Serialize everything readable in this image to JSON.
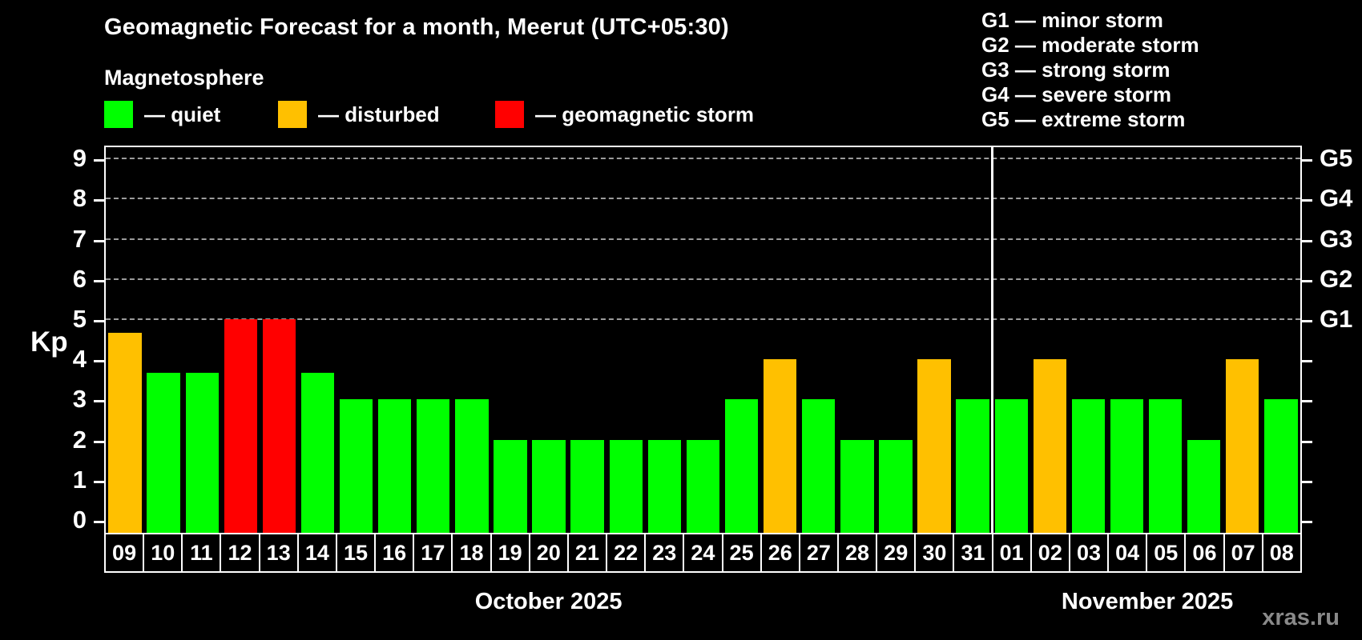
{
  "header": {
    "title": "Geomagnetic Forecast for a month, Meerut (UTC+05:30)",
    "subtitle": "Magnetosphere"
  },
  "legend": [
    {
      "key": "quiet",
      "label": "— quiet"
    },
    {
      "key": "disturbed",
      "label": "— disturbed"
    },
    {
      "key": "storm",
      "label": "— geomagnetic storm"
    }
  ],
  "g_scale_legend": [
    "G1 — minor storm",
    "G2 — moderate storm",
    "G3 — strong storm",
    "G4 — severe storm",
    "G5 — extreme storm"
  ],
  "colors": {
    "quiet": "#00ff00",
    "disturbed": "#ffc000",
    "storm": "#ff0000",
    "background": "#000000",
    "grid": "#9c9c9c",
    "axis": "#ffffff",
    "text": "#ffffff",
    "watermark": "#8a8a8a"
  },
  "watermark": "xras.ru",
  "chart_data": {
    "type": "bar",
    "ylabel": "Kp",
    "ylim": [
      0,
      9
    ],
    "yticks": [
      0,
      1,
      2,
      3,
      4,
      5,
      6,
      7,
      8,
      9
    ],
    "gridlines_at": [
      5,
      6,
      7,
      8,
      9
    ],
    "grid": "dashed",
    "right_axis_labels": [
      {
        "value": 5,
        "label": "G1"
      },
      {
        "value": 6,
        "label": "G2"
      },
      {
        "value": 7,
        "label": "G3"
      },
      {
        "value": 8,
        "label": "G4"
      },
      {
        "value": 9,
        "label": "G5"
      }
    ],
    "months": [
      {
        "label": "October 2025",
        "days": [
          {
            "day": "09",
            "kp": 4.67,
            "level": "disturbed"
          },
          {
            "day": "10",
            "kp": 3.67,
            "level": "quiet"
          },
          {
            "day": "11",
            "kp": 3.67,
            "level": "quiet"
          },
          {
            "day": "12",
            "kp": 5,
            "level": "storm"
          },
          {
            "day": "13",
            "kp": 5,
            "level": "storm"
          },
          {
            "day": "14",
            "kp": 3.67,
            "level": "quiet"
          },
          {
            "day": "15",
            "kp": 3,
            "level": "quiet"
          },
          {
            "day": "16",
            "kp": 3,
            "level": "quiet"
          },
          {
            "day": "17",
            "kp": 3,
            "level": "quiet"
          },
          {
            "day": "18",
            "kp": 3,
            "level": "quiet"
          },
          {
            "day": "19",
            "kp": 2,
            "level": "quiet"
          },
          {
            "day": "20",
            "kp": 2,
            "level": "quiet"
          },
          {
            "day": "21",
            "kp": 2,
            "level": "quiet"
          },
          {
            "day": "22",
            "kp": 2,
            "level": "quiet"
          },
          {
            "day": "23",
            "kp": 2,
            "level": "quiet"
          },
          {
            "day": "24",
            "kp": 2,
            "level": "quiet"
          },
          {
            "day": "25",
            "kp": 3,
            "level": "quiet"
          },
          {
            "day": "26",
            "kp": 4,
            "level": "disturbed"
          },
          {
            "day": "27",
            "kp": 3,
            "level": "quiet"
          },
          {
            "day": "28",
            "kp": 2,
            "level": "quiet"
          },
          {
            "day": "29",
            "kp": 2,
            "level": "quiet"
          },
          {
            "day": "30",
            "kp": 4,
            "level": "disturbed"
          },
          {
            "day": "31",
            "kp": 3,
            "level": "quiet"
          }
        ]
      },
      {
        "label": "November 2025",
        "days": [
          {
            "day": "01",
            "kp": 3,
            "level": "quiet"
          },
          {
            "day": "02",
            "kp": 4,
            "level": "disturbed"
          },
          {
            "day": "03",
            "kp": 3,
            "level": "quiet"
          },
          {
            "day": "04",
            "kp": 3,
            "level": "quiet"
          },
          {
            "day": "05",
            "kp": 3,
            "level": "quiet"
          },
          {
            "day": "06",
            "kp": 2,
            "level": "quiet"
          },
          {
            "day": "07",
            "kp": 4,
            "level": "disturbed"
          },
          {
            "day": "08",
            "kp": 3,
            "level": "quiet"
          }
        ]
      }
    ]
  }
}
